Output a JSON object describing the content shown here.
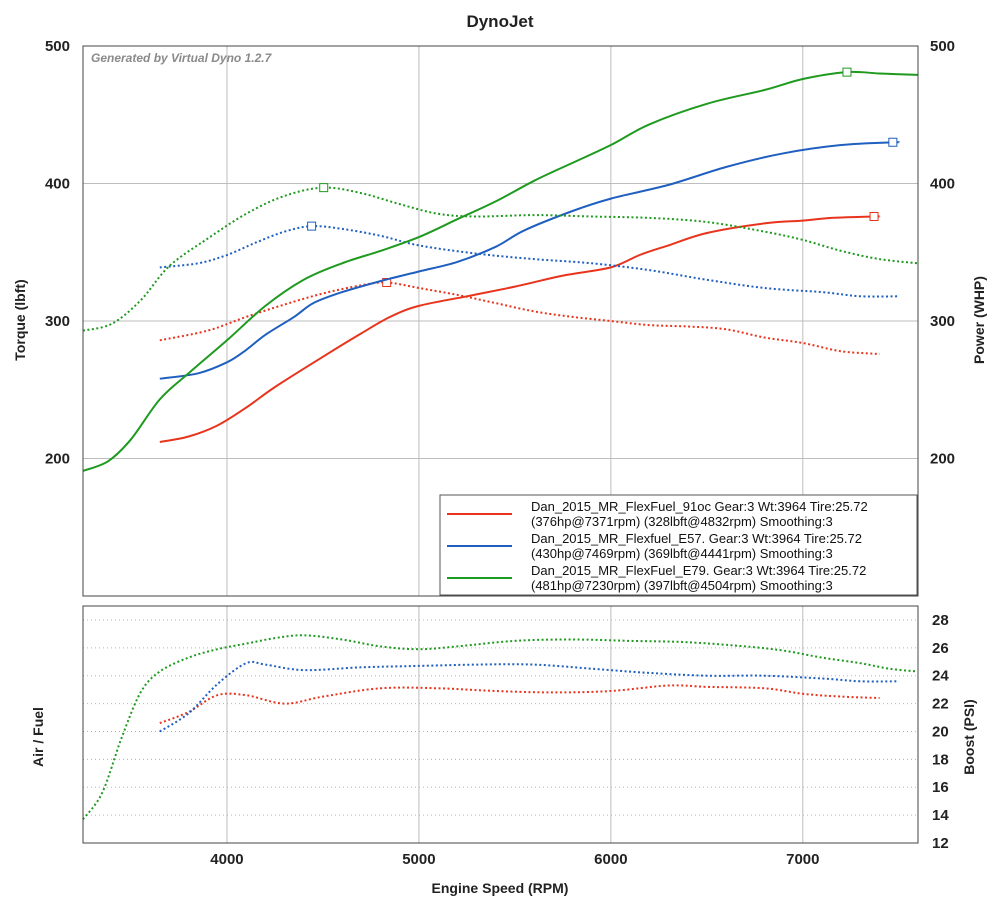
{
  "chart_data": [
    {
      "type": "line",
      "title": "DynoJet",
      "watermark": "Generated by Virtual Dyno 1.2.7",
      "xlabel": "Engine Speed (RPM)",
      "ylabel": "Torque (lbft)",
      "y2label": "Power (WHP)",
      "xlim": [
        3250,
        7600
      ],
      "ylim": [
        100,
        500
      ],
      "y2lim": [
        100,
        500
      ],
      "xticks": [
        4000,
        5000,
        6000,
        7000
      ],
      "yticks": [
        200,
        300,
        400,
        500
      ],
      "y2ticks": [
        200,
        300,
        400,
        500
      ],
      "grid": true,
      "legend_position": "bottom-right",
      "legend": [
        {
          "line1": "Dan_2015_MR_FlexFuel_91oc Gear:3 Wt:3964 Tire:25.72",
          "line2": "(376hp@7371rpm) (328lbft@4832rpm) Smoothing:3",
          "color": "#e8341c"
        },
        {
          "line1": "Dan_2015_MR_Flexfuel_E57. Gear:3 Wt:3964 Tire:25.72",
          "line2": "(430hp@7469rpm) (369lbft@4441rpm) Smoothing:3",
          "color": "#1f5fbf"
        },
        {
          "line1": "Dan_2015_MR_FlexFuel_E79. Gear:3 Wt:3964 Tire:25.72",
          "line2": "(481hp@7230rpm) (397lbft@4504rpm) Smoothing:3",
          "color": "#1e9a1e"
        }
      ],
      "series": [
        {
          "name": "Dan_2015_MR_FlexFuel_91oc",
          "kind": "power",
          "axis": "right",
          "style": "solid",
          "color": "#e8341c",
          "x": [
            3650,
            3800,
            3950,
            4100,
            4250,
            4500,
            4700,
            4850,
            5000,
            5250,
            5500,
            5750,
            6000,
            6150,
            6300,
            6500,
            6800,
            7000,
            7150,
            7371,
            7400
          ],
          "y": [
            212,
            216,
            224,
            237,
            252,
            274,
            291,
            303,
            311,
            318,
            325,
            333,
            339,
            348,
            355,
            364,
            371,
            373,
            375,
            376,
            376
          ],
          "peak": {
            "x": 7371,
            "y": 376
          }
        },
        {
          "name": "Dan_2015_MR_FlexFuel_91oc",
          "kind": "torque",
          "axis": "left",
          "style": "dotted",
          "color": "#e8341c",
          "x": [
            3650,
            3900,
            4100,
            4300,
            4500,
            4700,
            4832,
            5000,
            5200,
            5400,
            5600,
            5800,
            6000,
            6200,
            6400,
            6600,
            6800,
            7000,
            7200,
            7400
          ],
          "y": [
            286,
            293,
            303,
            312,
            320,
            326,
            328,
            324,
            319,
            313,
            307,
            303,
            300,
            297,
            296,
            294,
            288,
            284,
            278,
            276
          ],
          "peak": {
            "x": 4832,
            "y": 328
          }
        },
        {
          "name": "Dan_2015_MR_Flexfuel_E57.",
          "kind": "power",
          "axis": "right",
          "style": "solid",
          "color": "#1f5fbf",
          "x": [
            3650,
            3850,
            4000,
            4100,
            4200,
            4350,
            4450,
            4600,
            4800,
            5000,
            5200,
            5400,
            5550,
            5800,
            6000,
            6300,
            6600,
            6900,
            7200,
            7469,
            7500
          ],
          "y": [
            258,
            262,
            270,
            279,
            290,
            303,
            313,
            321,
            329,
            336,
            343,
            354,
            366,
            380,
            389,
            399,
            412,
            422,
            428,
            430,
            430
          ],
          "peak": {
            "x": 7469,
            "y": 430
          }
        },
        {
          "name": "Dan_2015_MR_Flexfuel_E57.",
          "kind": "torque",
          "axis": "left",
          "style": "dotted",
          "color": "#1f5fbf",
          "x": [
            3650,
            3850,
            4000,
            4150,
            4300,
            4441,
            4600,
            4800,
            5000,
            5300,
            5600,
            5900,
            6200,
            6500,
            6800,
            7100,
            7300,
            7500
          ],
          "y": [
            339,
            342,
            348,
            357,
            365,
            369,
            367,
            362,
            355,
            349,
            345,
            342,
            337,
            330,
            324,
            321,
            318,
            318
          ],
          "peak": {
            "x": 4441,
            "y": 369
          }
        },
        {
          "name": "Dan_2015_MR_FlexFuel_E79.",
          "kind": "power",
          "axis": "right",
          "style": "solid",
          "color": "#1e9a1e",
          "x": [
            3250,
            3380,
            3500,
            3650,
            3800,
            4000,
            4200,
            4400,
            4600,
            4800,
            5000,
            5200,
            5400,
            5600,
            5800,
            6000,
            6200,
            6500,
            6800,
            7000,
            7230,
            7400,
            7600
          ],
          "y": [
            191,
            198,
            214,
            243,
            262,
            286,
            311,
            330,
            342,
            351,
            361,
            374,
            387,
            402,
            415,
            428,
            443,
            458,
            468,
            476,
            481,
            480,
            479
          ],
          "peak": {
            "x": 7230,
            "y": 481
          }
        },
        {
          "name": "Dan_2015_MR_FlexFuel_E79.",
          "kind": "torque",
          "axis": "left",
          "style": "dotted",
          "color": "#1e9a1e",
          "x": [
            3250,
            3400,
            3550,
            3700,
            3900,
            4100,
            4300,
            4504,
            4700,
            4900,
            5100,
            5300,
            5600,
            5900,
            6200,
            6500,
            6800,
            7000,
            7200,
            7400,
            7600
          ],
          "y": [
            293,
            298,
            315,
            340,
            360,
            378,
            391,
            397,
            393,
            385,
            378,
            376,
            377,
            376,
            375,
            372,
            365,
            359,
            351,
            345,
            342
          ],
          "peak": {
            "x": 4504,
            "y": 397
          }
        }
      ]
    },
    {
      "type": "line",
      "ylabel": "Air / Fuel",
      "y2label": "Boost (PSI)",
      "xlim": [
        3250,
        7600
      ],
      "y2lim": [
        12,
        29
      ],
      "xticks": [
        4000,
        5000,
        6000,
        7000
      ],
      "y2ticks": [
        12,
        14,
        16,
        18,
        20,
        22,
        24,
        26,
        28
      ],
      "grid": true,
      "series": [
        {
          "name": "Dan_2015_MR_FlexFuel_91oc",
          "kind": "air-fuel",
          "axis": "right",
          "style": "dotted",
          "color": "#e8341c",
          "x": [
            3650,
            3800,
            3950,
            4100,
            4300,
            4500,
            4800,
            5100,
            5400,
            5700,
            6000,
            6300,
            6500,
            6800,
            7000,
            7200,
            7400
          ],
          "y": [
            20.6,
            21.4,
            22.6,
            22.6,
            22.0,
            22.5,
            23.1,
            23.1,
            22.9,
            22.8,
            22.9,
            23.3,
            23.2,
            23.1,
            22.7,
            22.5,
            22.4
          ]
        },
        {
          "name": "Dan_2015_MR_Flexfuel_E57.",
          "kind": "air-fuel",
          "axis": "right",
          "style": "dotted",
          "color": "#1f5fbf",
          "x": [
            3650,
            3800,
            3950,
            4100,
            4200,
            4400,
            4700,
            5000,
            5300,
            5600,
            5900,
            6200,
            6500,
            6800,
            7100,
            7300,
            7500
          ],
          "y": [
            20.0,
            21.3,
            23.4,
            24.9,
            24.8,
            24.4,
            24.6,
            24.7,
            24.8,
            24.8,
            24.5,
            24.2,
            24.0,
            24.0,
            23.8,
            23.6,
            23.6
          ]
        },
        {
          "name": "Dan_2015_MR_FlexFuel_E79.",
          "kind": "air-fuel",
          "axis": "right",
          "style": "dotted",
          "color": "#1e9a1e",
          "x": [
            3250,
            3350,
            3450,
            3550,
            3650,
            3800,
            3950,
            4100,
            4250,
            4400,
            4600,
            4800,
            5000,
            5200,
            5500,
            5800,
            6100,
            6400,
            6700,
            6900,
            7100,
            7300,
            7450,
            7600
          ],
          "y": [
            13.7,
            15.6,
            19.5,
            22.8,
            24.3,
            25.3,
            25.9,
            26.3,
            26.7,
            26.9,
            26.6,
            26.1,
            25.9,
            26.1,
            26.5,
            26.6,
            26.5,
            26.4,
            26.1,
            25.8,
            25.3,
            24.9,
            24.5,
            24.3
          ]
        }
      ]
    }
  ]
}
